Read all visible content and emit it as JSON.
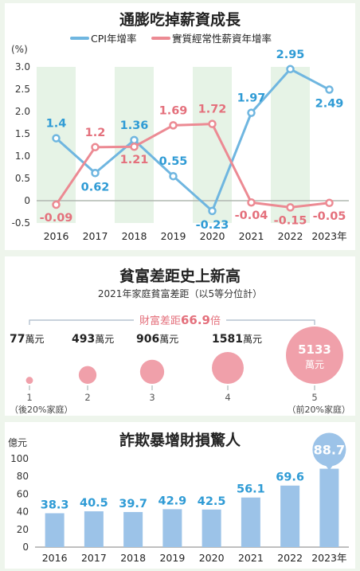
{
  "colors": {
    "cpi": "#6fb6e0",
    "wage": "#ec8a93",
    "pink_dark": "#e4707c",
    "bar": "#9cc3e8",
    "value_blue": "#2f9bd5",
    "stripe": "#e6f3e6",
    "bubble": "#f0a0aa"
  },
  "chart_data": [
    {
      "type": "line",
      "title": "通膨吃掉薪資成長",
      "ylabel": "(%)",
      "x": [
        "2016",
        "2017",
        "2018",
        "2019",
        "2020",
        "2021",
        "2022",
        "2023"
      ],
      "year_suffix": "年",
      "ylim": [
        -0.5,
        3.0
      ],
      "yticks": [
        "3.0",
        "2.5",
        "2.0",
        "1.5",
        "1.0",
        "0.5",
        "0",
        "-0.5"
      ],
      "legend_position": "top-center",
      "series": [
        {
          "name": "CPI年增率",
          "values": [
            1.4,
            0.62,
            1.36,
            0.55,
            -0.23,
            1.97,
            2.95,
            2.49
          ],
          "labels": [
            "1.4",
            "0.62",
            "1.36",
            "0.55",
            "-0.23",
            "1.97",
            "2.95",
            "2.49"
          ]
        },
        {
          "name": "實質經常性薪資年增率",
          "values": [
            -0.09,
            1.2,
            1.21,
            1.69,
            1.72,
            -0.04,
            -0.15,
            -0.05
          ],
          "labels": [
            "-0.09",
            "1.2",
            "1.21",
            "1.69",
            "1.72",
            "-0.04",
            "-0.15",
            "-0.05"
          ]
        }
      ]
    },
    {
      "type": "scatter",
      "title": "貧富差距史上新高",
      "subtitle": "2021年家庭貧富差距（以5等分位計）",
      "gap_label": "財富差距",
      "gap_value": "66.9",
      "gap_unit": "倍",
      "unit": "萬元",
      "categories": [
        "1",
        "2",
        "3",
        "4",
        "5"
      ],
      "values": [
        77,
        493,
        906,
        1581,
        5133
      ],
      "value_labels": [
        "77",
        "493",
        "906",
        "1581",
        "5133"
      ],
      "low_note": "（後20%家庭）",
      "high_note": "（前20%家庭）"
    },
    {
      "type": "bar",
      "title": "詐欺暴增財損驚人",
      "ylabel": "億元",
      "categories": [
        "2016",
        "2017",
        "2018",
        "2019",
        "2020",
        "2021",
        "2022",
        "2023"
      ],
      "year_suffix": "年",
      "values": [
        38.3,
        40.5,
        39.7,
        42.9,
        42.5,
        56.1,
        69.6,
        88.7
      ],
      "labels": [
        "38.3",
        "40.5",
        "39.7",
        "42.9",
        "42.5",
        "56.1",
        "69.6",
        "88.7"
      ],
      "ylim": [
        0,
        100
      ],
      "yticks": [
        "100",
        "80",
        "60",
        "40",
        "20",
        "0"
      ]
    }
  ]
}
